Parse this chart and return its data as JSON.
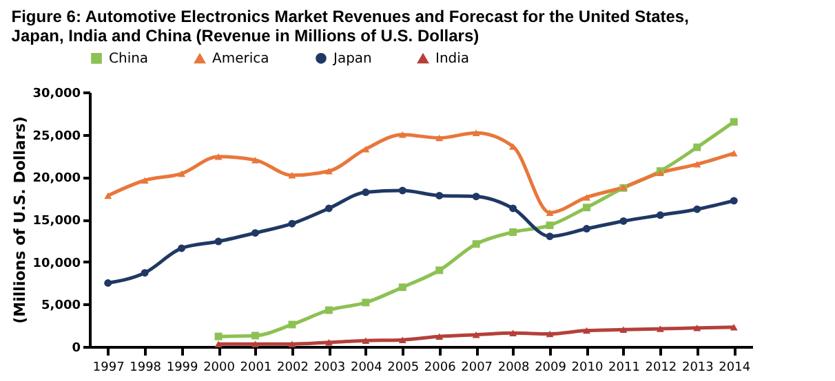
{
  "chart_data": {
    "type": "line",
    "title": "Figure 6: Automotive Electronics Market Revenues and Forecast for the United States,\nJapan, India and China (Revenue in Millions of U.S. Dollars)",
    "ylabel": "(Millions of U.S. Dollars)",
    "categories": [
      "1997",
      "1998",
      "1999",
      "2000",
      "2001",
      "2002",
      "2003",
      "2004",
      "2005",
      "2006",
      "2007",
      "2008",
      "2009",
      "2010",
      "2011",
      "2012",
      "2013",
      "2014"
    ],
    "series": [
      {
        "name": "China",
        "color": "#8dc153",
        "marker": "square",
        "values": [
          null,
          null,
          null,
          1200,
          1300,
          2600,
          4300,
          5200,
          7000,
          9000,
          12100,
          13500,
          14300,
          16400,
          18700,
          20700,
          23500,
          26500
        ]
      },
      {
        "name": "America",
        "color": "#e8773a",
        "marker": "triangle",
        "values": [
          17800,
          19600,
          20400,
          22400,
          22000,
          20200,
          20700,
          23300,
          25000,
          24600,
          25200,
          23600,
          15800,
          17600,
          18800,
          20500,
          21500,
          22800
        ]
      },
      {
        "name": "Japan",
        "color": "#1f3864",
        "marker": "circle",
        "values": [
          7500,
          8700,
          11600,
          12400,
          13400,
          14500,
          16300,
          18200,
          18400,
          17800,
          17700,
          16300,
          13000,
          13900,
          14800,
          15500,
          16200,
          17200
        ]
      },
      {
        "name": "India",
        "color": "#b5403a",
        "marker": "triangle",
        "values": [
          null,
          null,
          null,
          300,
          300,
          300,
          500,
          700,
          800,
          1200,
          1400,
          1600,
          1500,
          1900,
          2000,
          2100,
          2200,
          2300
        ]
      }
    ],
    "ylim": [
      0,
      30000
    ],
    "yticks": [
      0,
      {
        "value": 5000,
        "label": "5,000"
      },
      {
        "value": 10000,
        "label": "10,000"
      },
      {
        "value": 15000,
        "label": "15,000"
      },
      {
        "value": 20000,
        "label": "20,000"
      },
      {
        "value": 25000,
        "label": "25,000"
      },
      {
        "value": 30000,
        "label": "30,000"
      }
    ],
    "grid": false,
    "legend": "top",
    "line_style": "solid"
  }
}
